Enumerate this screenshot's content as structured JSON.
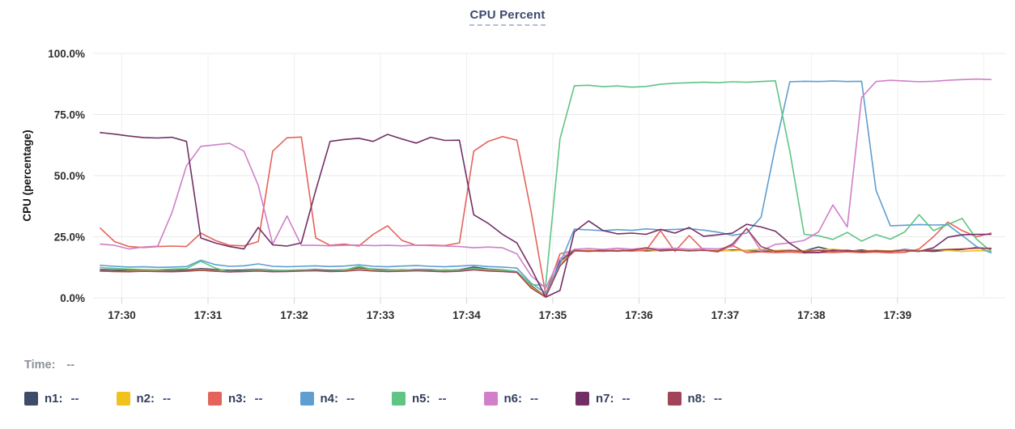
{
  "title": "CPU Percent",
  "time_row": {
    "label": "Time:",
    "value": "--"
  },
  "legend": [
    {
      "name": "n1",
      "label": "n1:",
      "value": "--",
      "color": "#3f4c69"
    },
    {
      "name": "n2",
      "label": "n2:",
      "value": "--",
      "color": "#f2c21c"
    },
    {
      "name": "n3",
      "label": "n3:",
      "value": "--",
      "color": "#e4635a"
    },
    {
      "name": "n4",
      "label": "n4:",
      "value": "--",
      "color": "#5f9ed1"
    },
    {
      "name": "n5",
      "label": "n5:",
      "value": "--",
      "color": "#5ec584"
    },
    {
      "name": "n6",
      "label": "n6:",
      "value": "--",
      "color": "#d07fc8"
    },
    {
      "name": "n7",
      "label": "n7:",
      "value": "--",
      "color": "#722f66"
    },
    {
      "name": "n8",
      "label": "n8:",
      "value": "--",
      "color": "#a14459"
    }
  ],
  "chart_data": {
    "type": "line",
    "title": "CPU Percent",
    "ylabel": "CPU (percentage)",
    "xlabel": "",
    "ylim": [
      0,
      100
    ],
    "grid": true,
    "legend_position": "bottom",
    "y_axis": {
      "ticks": [
        {
          "value": 0,
          "label": "0.0%"
        },
        {
          "value": 25,
          "label": "25.0%"
        },
        {
          "value": 50,
          "label": "50.0%"
        },
        {
          "value": 75,
          "label": "75.0%"
        },
        {
          "value": 100,
          "label": "100.0%"
        }
      ]
    },
    "x_axis": {
      "unit": "time",
      "min_seconds": -20,
      "max_seconds": 615,
      "ticks": [
        {
          "seconds": 0,
          "label": "17:30"
        },
        {
          "seconds": 60,
          "label": "17:31"
        },
        {
          "seconds": 120,
          "label": "17:32"
        },
        {
          "seconds": 180,
          "label": "17:33"
        },
        {
          "seconds": 240,
          "label": "17:34"
        },
        {
          "seconds": 300,
          "label": "17:35"
        },
        {
          "seconds": 360,
          "label": "17:36"
        },
        {
          "seconds": 420,
          "label": "17:37"
        },
        {
          "seconds": 480,
          "label": "17:38"
        },
        {
          "seconds": 540,
          "label": "17:39"
        },
        {
          "seconds": 600,
          "label": ""
        }
      ]
    },
    "samples": {
      "start_seconds": -15,
      "step_seconds": 10
    },
    "series": [
      {
        "name": "n1",
        "color": "#3f4c69",
        "values": [
          11.6,
          11.4,
          11.3,
          11.5,
          11.3,
          11.2,
          11.4,
          12.0,
          11.6,
          11.3,
          11.4,
          11.7,
          11.3,
          11.2,
          11.4,
          11.6,
          11.3,
          11.5,
          12.3,
          11.8,
          11.5,
          11.4,
          11.6,
          11.5,
          11.3,
          11.5,
          12.6,
          11.8,
          11.5,
          10.8,
          5.0,
          0.5,
          15.0,
          19.4,
          19.2,
          19.5,
          19.3,
          19.6,
          19.2,
          19.5,
          19.7,
          19.3,
          19.5,
          19.2,
          19.6,
          19.4,
          19.0,
          19.3,
          19.6,
          19.2,
          20.8,
          19.4,
          19.0,
          19.6,
          18.8,
          19.2,
          19.8,
          19.3,
          19.0,
          19.5,
          19.8,
          20.6,
          20.0
        ]
      },
      {
        "name": "n2",
        "color": "#f2c21c",
        "values": [
          11.0,
          10.8,
          10.9,
          11.1,
          10.9,
          10.8,
          11.0,
          11.6,
          11.0,
          10.7,
          10.9,
          11.2,
          10.8,
          10.9,
          11.0,
          11.2,
          10.9,
          11.0,
          11.8,
          11.2,
          10.9,
          11.0,
          11.2,
          11.0,
          10.8,
          11.0,
          11.9,
          11.3,
          11.0,
          10.5,
          4.5,
          0.4,
          14.0,
          19.0,
          19.6,
          19.2,
          20.3,
          19.4,
          19.8,
          19.2,
          19.5,
          19.8,
          19.3,
          19.6,
          19.2,
          19.5,
          19.9,
          19.4,
          19.7,
          19.3,
          19.6,
          19.9,
          19.4,
          19.1,
          19.5,
          19.2,
          19.6,
          19.3,
          19.7,
          19.4,
          19.0,
          19.3,
          19.2
        ]
      },
      {
        "name": "n3",
        "color": "#e4635a",
        "values": [
          28.5,
          23.0,
          21.0,
          20.6,
          21.0,
          21.2,
          21.0,
          26.5,
          23.5,
          21.5,
          21.3,
          23.0,
          60.0,
          65.5,
          65.8,
          24.5,
          21.5,
          22.0,
          21.2,
          26.0,
          29.5,
          23.5,
          21.5,
          21.6,
          21.4,
          22.5,
          60.0,
          64.0,
          66.0,
          64.5,
          35.0,
          1.5,
          18.0,
          19.5,
          19.2,
          19.0,
          19.4,
          19.1,
          19.5,
          27.5,
          19.0,
          25.5,
          19.5,
          18.8,
          21.5,
          18.5,
          18.8,
          18.5,
          18.7,
          18.4,
          18.6,
          18.5,
          18.8,
          18.5,
          18.7,
          18.4,
          18.6,
          20.0,
          25.0,
          31.0,
          27.5,
          25.0,
          26.5
        ]
      },
      {
        "name": "n4",
        "color": "#5f9ed1",
        "values": [
          13.3,
          12.9,
          12.6,
          12.7,
          12.5,
          12.6,
          12.8,
          15.4,
          13.6,
          12.9,
          13.1,
          13.9,
          12.9,
          12.7,
          12.9,
          13.1,
          12.8,
          13.0,
          13.5,
          12.9,
          12.7,
          13.0,
          13.2,
          12.9,
          12.7,
          13.0,
          13.3,
          12.8,
          12.6,
          12.2,
          6.0,
          2.0,
          14.0,
          28.1,
          27.8,
          27.5,
          27.9,
          27.6,
          28.2,
          27.8,
          28.0,
          28.3,
          27.7,
          26.9,
          25.6,
          26.5,
          33.0,
          62.0,
          88.4,
          88.6,
          88.5,
          88.7,
          88.5,
          88.6,
          44.0,
          29.5,
          29.7,
          30.0,
          29.8,
          29.9,
          25.5,
          21.0,
          18.4
        ]
      },
      {
        "name": "n5",
        "color": "#5ec584",
        "values": [
          12.4,
          12.1,
          11.8,
          11.6,
          11.5,
          11.8,
          12.0,
          15.0,
          12.2,
          10.6,
          11.0,
          11.6,
          11.1,
          11.3,
          11.5,
          11.3,
          11.0,
          11.4,
          12.9,
          11.6,
          11.3,
          11.6,
          11.4,
          11.2,
          11.5,
          11.3,
          12.1,
          11.6,
          11.4,
          10.8,
          5.5,
          5.0,
          65.0,
          86.8,
          87.0,
          86.4,
          86.7,
          86.2,
          86.5,
          87.4,
          87.8,
          88.0,
          88.2,
          88.0,
          88.4,
          88.2,
          88.5,
          88.8,
          60.0,
          26.0,
          25.4,
          23.9,
          26.8,
          23.2,
          25.9,
          24.0,
          27.0,
          34.0,
          27.5,
          30.0,
          32.5,
          24.0,
          19.0
        ]
      },
      {
        "name": "n6",
        "color": "#d07fc8",
        "values": [
          22.0,
          21.5,
          20.0,
          20.8,
          21.2,
          35.0,
          54.0,
          62.0,
          62.6,
          63.2,
          60.0,
          46.0,
          22.0,
          33.5,
          21.5,
          21.5,
          21.3,
          21.5,
          21.6,
          21.4,
          21.5,
          21.3,
          21.6,
          21.4,
          21.2,
          21.0,
          20.5,
          20.8,
          20.5,
          18.0,
          9.0,
          4.0,
          16.0,
          19.9,
          20.2,
          19.8,
          20.3,
          19.9,
          20.4,
          20.0,
          20.3,
          19.9,
          20.2,
          20.0,
          21.0,
          28.5,
          19.2,
          21.9,
          22.5,
          23.5,
          27.0,
          38.0,
          29.0,
          82.0,
          88.5,
          89.0,
          88.7,
          88.4,
          88.6,
          89.0,
          89.3,
          89.5,
          89.3
        ]
      },
      {
        "name": "n7",
        "color": "#722f66",
        "values": [
          67.6,
          67.0,
          66.2,
          65.6,
          65.4,
          65.7,
          64.0,
          24.5,
          22.5,
          21.0,
          20.0,
          28.8,
          21.7,
          21.2,
          22.5,
          44.0,
          64.0,
          64.8,
          65.3,
          64.0,
          66.9,
          65.0,
          63.3,
          65.7,
          64.4,
          64.5,
          34.0,
          30.5,
          26.0,
          22.5,
          12.0,
          0.3,
          3.0,
          27.0,
          31.5,
          27.5,
          26.2,
          26.5,
          26.0,
          28.0,
          26.5,
          28.8,
          25.2,
          25.8,
          26.5,
          30.1,
          29.0,
          27.3,
          22.3,
          18.5,
          18.5,
          19.5,
          19.2,
          19.0,
          19.2,
          19.0,
          19.4,
          19.0,
          20.5,
          24.8,
          25.8,
          26.0,
          26.0
        ]
      },
      {
        "name": "n8",
        "color": "#a14459",
        "values": [
          11.0,
          10.8,
          10.7,
          10.9,
          10.8,
          10.7,
          10.9,
          11.3,
          10.9,
          10.6,
          10.8,
          11.0,
          10.7,
          10.8,
          11.0,
          11.1,
          10.8,
          10.9,
          11.4,
          11.0,
          10.8,
          10.9,
          11.1,
          10.9,
          10.7,
          10.9,
          11.5,
          11.0,
          10.8,
          10.4,
          4.0,
          0.3,
          13.0,
          19.3,
          19.0,
          19.4,
          19.1,
          19.5,
          20.5,
          19.2,
          19.6,
          19.2,
          19.5,
          19.1,
          22.0,
          28.3,
          21.0,
          19.0,
          19.3,
          19.0,
          19.4,
          19.1,
          19.5,
          18.8,
          19.2,
          19.0,
          19.4,
          19.1,
          19.5,
          19.8,
          20.0,
          20.3,
          20.3
        ]
      }
    ]
  }
}
